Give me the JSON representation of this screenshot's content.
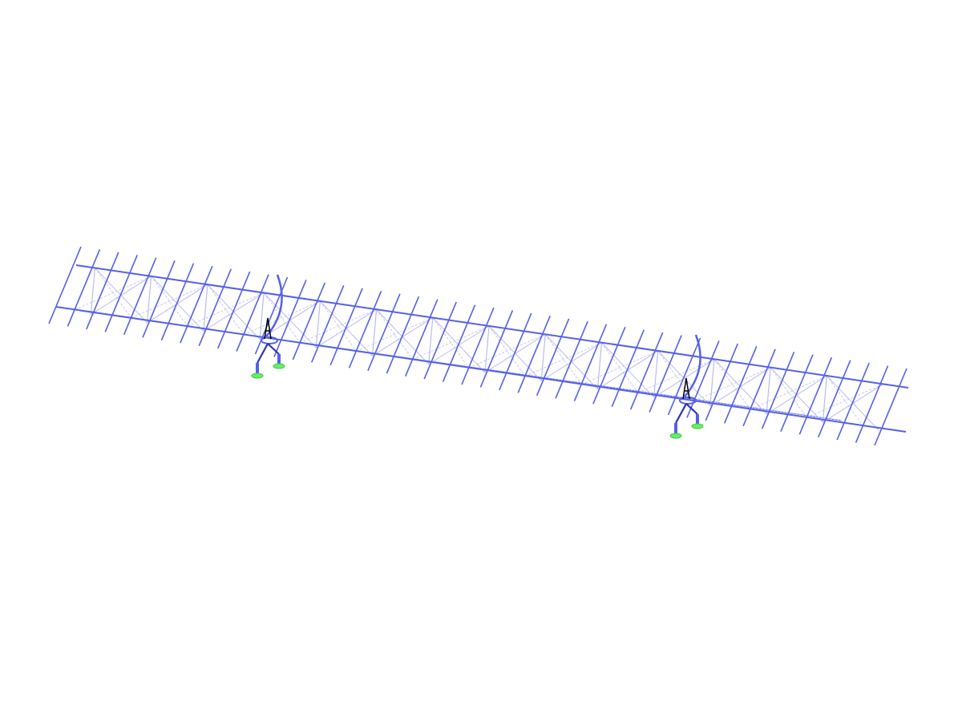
{
  "view": {
    "background": "#ffffff",
    "colors": {
      "member": "#5560e8",
      "bracing": "#b7bcf2",
      "support_leg": "#2a34b8",
      "node_marker": "#000000",
      "support_pad": "#66ee66"
    },
    "purlin_count": 45,
    "support_count": 2
  }
}
